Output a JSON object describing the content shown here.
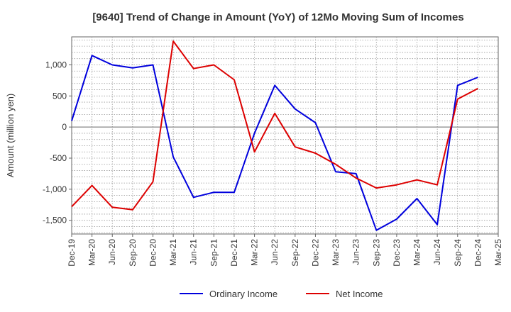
{
  "chart_data": {
    "type": "line",
    "title": "[9640]  Trend of Change in Amount (YoY) of 12Mo Moving Sum of Incomes",
    "xlabel": "",
    "ylabel": "Amount (million yen)",
    "ylim": [
      -1720,
      1450
    ],
    "yticks": [
      1000,
      500,
      0,
      -500,
      -1000,
      -1500
    ],
    "ytick_labels": [
      "1,000",
      "500",
      "0",
      "-500",
      "-1,000",
      "-1,500"
    ],
    "categories": [
      "Dec-19",
      "Mar-20",
      "Jun-20",
      "Sep-20",
      "Dec-20",
      "Mar-21",
      "Jun-21",
      "Sep-21",
      "Dec-21",
      "Mar-22",
      "Jun-22",
      "Sep-22",
      "Dec-22",
      "Mar-23",
      "Jun-23",
      "Sep-23",
      "Dec-23",
      "Mar-24",
      "Jun-24",
      "Sep-24",
      "Dec-24",
      "Mar-25"
    ],
    "grid": true,
    "legend_position": "bottom",
    "series": [
      {
        "name": "Ordinary Income",
        "color": "#0000dd",
        "values": [
          100,
          1150,
          1000,
          950,
          1000,
          -480,
          -1130,
          -1050,
          -1050,
          -100,
          670,
          290,
          70,
          -720,
          -750,
          -1660,
          -1480,
          -1150,
          -1570,
          670,
          800,
          null
        ]
      },
      {
        "name": "Net Income",
        "color": "#dd0000",
        "values": [
          -1280,
          -940,
          -1290,
          -1330,
          -880,
          1380,
          940,
          1000,
          760,
          -400,
          220,
          -320,
          -420,
          -600,
          -820,
          -980,
          -930,
          -850,
          -930,
          450,
          620,
          null
        ]
      }
    ]
  }
}
